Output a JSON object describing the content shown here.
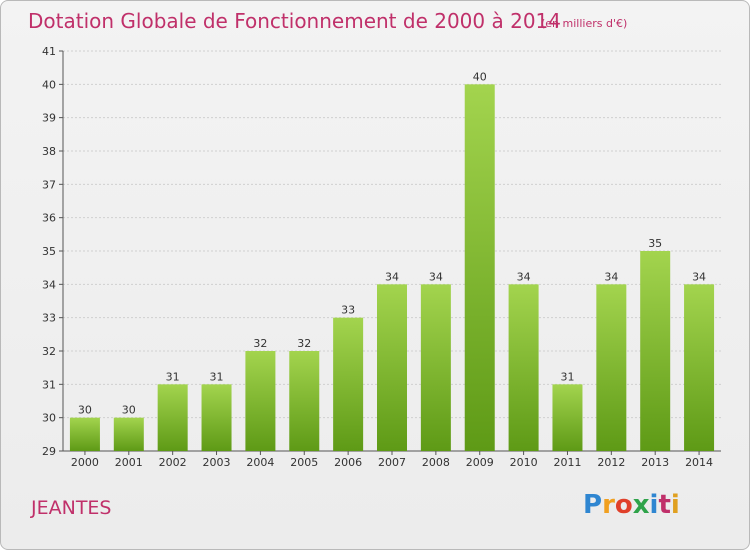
{
  "title": "Dotation Globale de Fonctionnement de 2000 à 2014",
  "subtitle": "(en milliers d'€)",
  "commune": "JEANTES",
  "logo": {
    "text": "Proxiti",
    "colors": [
      "#2f86d1",
      "#f0a020",
      "#e0402a",
      "#2fa34a",
      "#2f86d1",
      "#c0306a",
      "#e0a020"
    ]
  },
  "colors": {
    "bar_light": "#a3d44e",
    "bar_dark": "#5e9a16",
    "title": "#c0306a",
    "grid": "#cfcfcf"
  },
  "chart_data": {
    "type": "bar",
    "categories": [
      "2000",
      "2001",
      "2002",
      "2003",
      "2004",
      "2005",
      "2006",
      "2007",
      "2008",
      "2009",
      "2010",
      "2011",
      "2012",
      "2013",
      "2014"
    ],
    "values": [
      30,
      30,
      31,
      31,
      32,
      32,
      33,
      34,
      34,
      40,
      34,
      31,
      34,
      35,
      34
    ],
    "ylim": [
      29,
      41
    ],
    "yticks": [
      29,
      30,
      31,
      32,
      33,
      34,
      35,
      36,
      37,
      38,
      39,
      40,
      41
    ],
    "grid": true
  }
}
